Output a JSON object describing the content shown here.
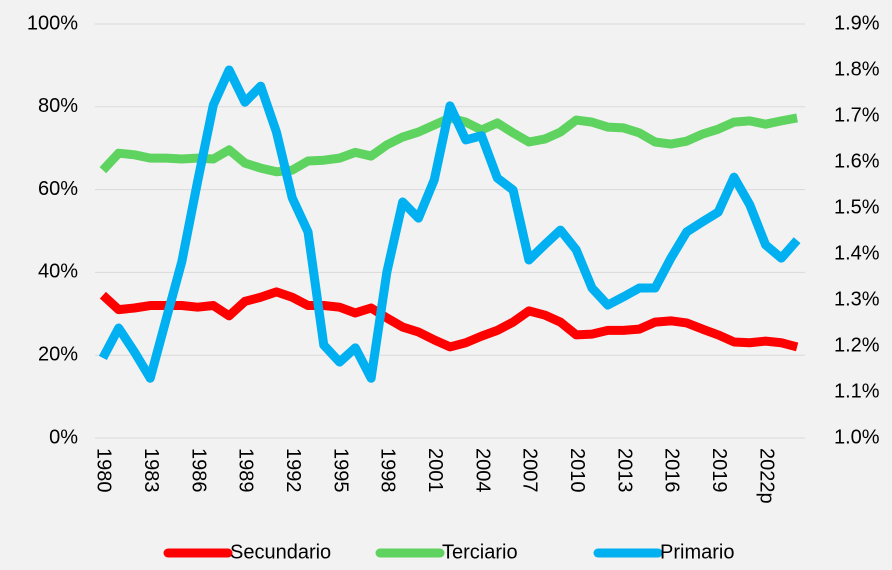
{
  "chart_data": {
    "type": "line",
    "categories": [
      "1980",
      null,
      null,
      "1983",
      null,
      null,
      "1986",
      null,
      null,
      "1989",
      null,
      null,
      "1992",
      null,
      null,
      "1995",
      null,
      null,
      "1998",
      null,
      null,
      "2001",
      null,
      null,
      "2004",
      null,
      null,
      "2007",
      null,
      null,
      "2010",
      null,
      null,
      "2013",
      null,
      null,
      "2016",
      null,
      null,
      "2019",
      null,
      null,
      "2022p",
      null,
      null
    ],
    "series": [
      {
        "name": "Secundario",
        "color": "#ff0000",
        "values": [
          34.5,
          31,
          31.4,
          32,
          32,
          32,
          31.6,
          32,
          29.5,
          33,
          34,
          35.3,
          34,
          32,
          32,
          31.6,
          30.2,
          31.4,
          29,
          26.8,
          25.6,
          23.7,
          22,
          23,
          24.6,
          26,
          28,
          30.7,
          29.7,
          28,
          24.9,
          25.1,
          26,
          26,
          26.3,
          28,
          28.3,
          27.8,
          26.3,
          24.9,
          23.2,
          23,
          23.4,
          23,
          22
        ]
      },
      {
        "name": "Terciario",
        "color": "#5fd35f",
        "values": [
          64.7,
          68.8,
          68.4,
          67.6,
          67.6,
          67.4,
          67.6,
          67.4,
          69.6,
          66.4,
          65.2,
          64.3,
          64.7,
          66.9,
          67.1,
          67.6,
          69,
          68.1,
          70.8,
          72.7,
          73.9,
          75.6,
          77.3,
          76.3,
          74.4,
          76.1,
          73.7,
          71.5,
          72.2,
          73.9,
          76.8,
          76.3,
          75.1,
          74.9,
          73.7,
          71.5,
          71,
          71.7,
          73.4,
          74.6,
          76.3,
          76.6,
          75.8,
          76.6,
          77.3
        ]
      },
      {
        "name": "Primario",
        "color": "#00b0f0",
        "axis": "y2",
        "values": [
          1.174,
          1.239,
          1.187,
          1.13,
          1.257,
          1.383,
          1.557,
          1.724,
          1.8,
          1.73,
          1.765,
          1.665,
          1.522,
          1.448,
          1.202,
          1.165,
          1.196,
          1.13,
          1.361,
          1.513,
          1.478,
          1.561,
          1.722,
          1.648,
          1.657,
          1.565,
          1.539,
          1.387,
          1.42,
          1.452,
          1.409,
          1.326,
          1.289,
          1.307,
          1.326,
          1.326,
          1.391,
          1.448,
          1.47,
          1.491,
          1.567,
          1.507,
          1.42,
          1.391,
          1.43
        ]
      }
    ],
    "ylim": [
      0,
      100
    ],
    "yticks": [
      {
        "value": 0,
        "label": "0%"
      },
      {
        "value": 20,
        "label": "20%"
      },
      {
        "value": 40,
        "label": "40%"
      },
      {
        "value": 60,
        "label": "60%"
      },
      {
        "value": 80,
        "label": "80%"
      },
      {
        "value": 100,
        "label": "100%"
      }
    ],
    "y2lim": [
      1.0,
      1.9
    ],
    "y2ticks": [
      {
        "value": 1.0,
        "label": "1.0%"
      },
      {
        "value": 1.1,
        "label": "1.1%"
      },
      {
        "value": 1.2,
        "label": "1.2%"
      },
      {
        "value": 1.3,
        "label": "1.3%"
      },
      {
        "value": 1.4,
        "label": "1.4%"
      },
      {
        "value": 1.5,
        "label": "1.5%"
      },
      {
        "value": 1.6,
        "label": "1.6%"
      },
      {
        "value": 1.7,
        "label": "1.7%"
      },
      {
        "value": 1.8,
        "label": "1.8%"
      },
      {
        "value": 1.9,
        "label": "1.9%"
      }
    ],
    "grid": true,
    "legend": "bottom"
  }
}
